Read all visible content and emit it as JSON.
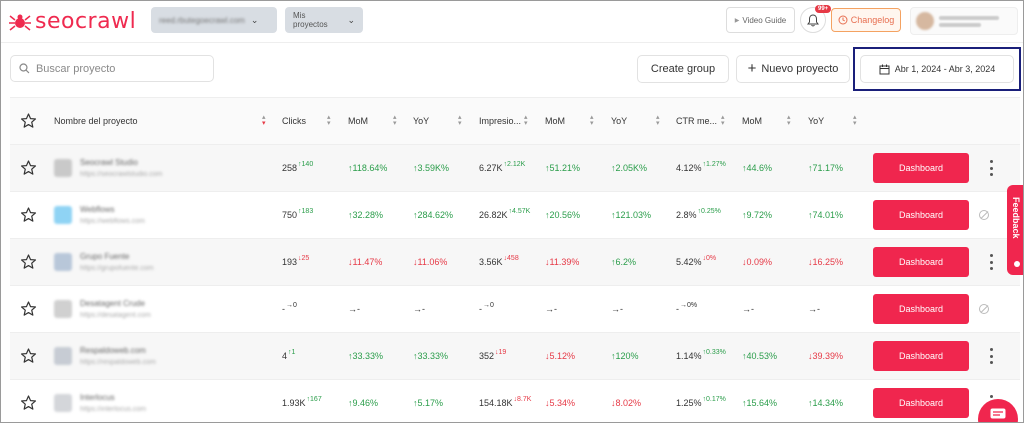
{
  "app": {
    "logo_text": "seocrawl",
    "colors": {
      "brand": "#f0264e",
      "positive": "#2a9d4a",
      "negative": "#e63946",
      "date_outline": "#1a1f7a"
    }
  },
  "topbar": {
    "user_selector": "reed.rbutegoecrawl.com",
    "projects_selector": "Mis proyectos",
    "video_guide": "Video Guide",
    "notifications_badge": "99+",
    "changelog": "Changelog"
  },
  "toolbar": {
    "search_placeholder": "Buscar proyecto",
    "create_group": "Create group",
    "new_project": "Nuevo proyecto",
    "date_range": "Abr 1, 2024 - Abr 3, 2024"
  },
  "table": {
    "columns": [
      "Nombre del proyecto",
      "Clicks",
      "MoM",
      "YoY",
      "Impresio...",
      "MoM",
      "YoY",
      "CTR me...",
      "MoM",
      "YoY"
    ],
    "action_label": "Dashboard",
    "rows": [
      {
        "name": "Seocrawl Studio",
        "url": "https://seocrawlstudio.com",
        "favicon_color": "#c9c9c9",
        "clicks": "258",
        "clicks_delta": "↑140",
        "clicks_delta_dir": "up",
        "clicks_mom": "↑118.64%",
        "clicks_mom_dir": "up",
        "clicks_yoy": "↑3.59K%",
        "clicks_yoy_dir": "up",
        "impr": "6.27K",
        "impr_delta": "↑2.12K",
        "impr_delta_dir": "up",
        "impr_mom": "↑51.21%",
        "impr_mom_dir": "up",
        "impr_yoy": "↑2.05K%",
        "impr_yoy_dir": "up",
        "ctr": "4.12%",
        "ctr_delta": "↑1.27%",
        "ctr_delta_dir": "up",
        "ctr_mom": "↑44.6%",
        "ctr_mom_dir": "up",
        "ctr_yoy": "↑71.17%",
        "ctr_yoy_dir": "up",
        "menu": "more"
      },
      {
        "name": "Webflows",
        "url": "https://webflows.com",
        "favicon_color": "#8fd3f4",
        "clicks": "750",
        "clicks_delta": "↑183",
        "clicks_delta_dir": "up",
        "clicks_mom": "↑32.28%",
        "clicks_mom_dir": "up",
        "clicks_yoy": "↑284.62%",
        "clicks_yoy_dir": "up",
        "impr": "26.82K",
        "impr_delta": "↑4.57K",
        "impr_delta_dir": "up",
        "impr_mom": "↑20.56%",
        "impr_mom_dir": "up",
        "impr_yoy": "↑121.03%",
        "impr_yoy_dir": "up",
        "ctr": "2.8%",
        "ctr_delta": "↑0.25%",
        "ctr_delta_dir": "up",
        "ctr_mom": "↑9.72%",
        "ctr_mom_dir": "up",
        "ctr_yoy": "↑74.01%",
        "ctr_yoy_dir": "up",
        "menu": "blocked"
      },
      {
        "name": "Grupo Fuente",
        "url": "https://grupofuente.com",
        "favicon_color": "#b8c7d9",
        "clicks": "193",
        "clicks_delta": "↓25",
        "clicks_delta_dir": "down",
        "clicks_mom": "↓11.47%",
        "clicks_mom_dir": "down",
        "clicks_yoy": "↓11.06%",
        "clicks_yoy_dir": "down",
        "impr": "3.56K",
        "impr_delta": "↓458",
        "impr_delta_dir": "down",
        "impr_mom": "↓11.39%",
        "impr_mom_dir": "down",
        "impr_yoy": "↑6.2%",
        "impr_yoy_dir": "up",
        "ctr": "5.42%",
        "ctr_delta": "↓0%",
        "ctr_delta_dir": "down",
        "ctr_mom": "↓0.09%",
        "ctr_mom_dir": "down",
        "ctr_yoy": "↓16.25%",
        "ctr_yoy_dir": "down",
        "menu": "more"
      },
      {
        "name": "Desatagent Crude",
        "url": "https://desatagent.com",
        "favicon_color": "#d0d0d0",
        "clicks": "-",
        "clicks_delta": "→0",
        "clicks_delta_dir": "flat",
        "clicks_mom": "→-",
        "clicks_mom_dir": "flat",
        "clicks_yoy": "→-",
        "clicks_yoy_dir": "flat",
        "impr": "-",
        "impr_delta": "→0",
        "impr_delta_dir": "flat",
        "impr_mom": "→-",
        "impr_mom_dir": "flat",
        "impr_yoy": "→-",
        "impr_yoy_dir": "flat",
        "ctr": "-",
        "ctr_delta": "→0%",
        "ctr_delta_dir": "flat",
        "ctr_mom": "→-",
        "ctr_mom_dir": "flat",
        "ctr_yoy": "→-",
        "ctr_yoy_dir": "flat",
        "menu": "blocked"
      },
      {
        "name": "Respaldoweb.com",
        "url": "https://respaldoweb.com",
        "favicon_color": "#c7ccd4",
        "clicks": "4",
        "clicks_delta": "↑1",
        "clicks_delta_dir": "up",
        "clicks_mom": "↑33.33%",
        "clicks_mom_dir": "up",
        "clicks_yoy": "↑33.33%",
        "clicks_yoy_dir": "up",
        "impr": "352",
        "impr_delta": "↓19",
        "impr_delta_dir": "down",
        "impr_mom": "↓5.12%",
        "impr_mom_dir": "down",
        "impr_yoy": "↑120%",
        "impr_yoy_dir": "up",
        "ctr": "1.14%",
        "ctr_delta": "↑0.33%",
        "ctr_delta_dir": "up",
        "ctr_mom": "↑40.53%",
        "ctr_mom_dir": "up",
        "ctr_yoy": "↓39.39%",
        "ctr_yoy_dir": "down",
        "menu": "more"
      },
      {
        "name": "Interlocus",
        "url": "https://interlocus.com",
        "favicon_color": "#d4d6da",
        "clicks": "1.93K",
        "clicks_delta": "↑167",
        "clicks_delta_dir": "up",
        "clicks_mom": "↑9.46%",
        "clicks_mom_dir": "up",
        "clicks_yoy": "↑5.17%",
        "clicks_yoy_dir": "up",
        "impr": "154.18K",
        "impr_delta": "↓8.7K",
        "impr_delta_dir": "down",
        "impr_mom": "↓5.34%",
        "impr_mom_dir": "down",
        "impr_yoy": "↓8.02%",
        "impr_yoy_dir": "down",
        "ctr": "1.25%",
        "ctr_delta": "↑0.17%",
        "ctr_delta_dir": "up",
        "ctr_mom": "↑15.64%",
        "ctr_mom_dir": "up",
        "ctr_yoy": "↑14.34%",
        "ctr_yoy_dir": "up",
        "menu": "more"
      }
    ]
  },
  "feedback_tab": "Feedback"
}
